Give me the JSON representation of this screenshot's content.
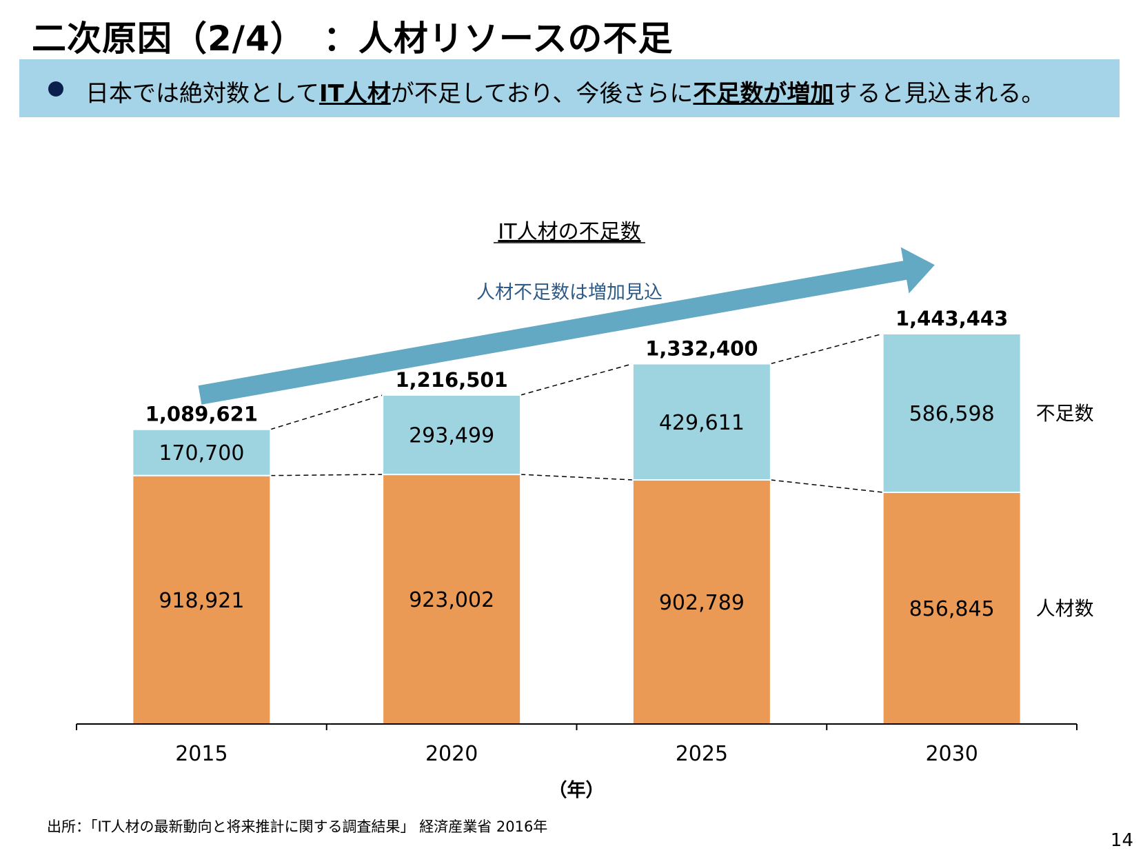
{
  "slide": {
    "title": "二次原因（2/4）　：人材リソースの不足",
    "bullet": {
      "pre": "日本では絶対数として",
      "bold1": "IT人材",
      "mid": "が不足しており、今後さらに",
      "bold2": "不足数が増加",
      "post": "すると見込まれる。"
    },
    "source": "出所：「IT人材の最新動向と将来推計に関する調査結果」 経済産業省 2016年",
    "page_number": "14"
  },
  "chart_data": {
    "type": "bar",
    "stacked": true,
    "title": "IT人材の不足数",
    "annotation": "人材不足数は増加見込",
    "xlabel": "（年）",
    "ylabel": "",
    "categories": [
      "2015",
      "2020",
      "2025",
      "2030"
    ],
    "series": [
      {
        "name": "人材数",
        "values": [
          918921,
          923002,
          902789,
          856845
        ],
        "color": "#eb9a56"
      },
      {
        "name": "不足数",
        "values": [
          170700,
          293499,
          429611,
          586598
        ],
        "color": "#9dd4e0"
      }
    ],
    "totals": [
      "1,089,621",
      "1,216,501",
      "1,332,400",
      "1,443,443"
    ],
    "segment_labels": [
      [
        "918,921",
        "923,002",
        "902,789",
        "856,845"
      ],
      [
        "170,700",
        "293,499",
        "429,611",
        "586,598"
      ]
    ],
    "ylim": [
      0,
      1500000
    ],
    "grid": false,
    "legend": "right",
    "arrow_color": "#64a9c4"
  }
}
